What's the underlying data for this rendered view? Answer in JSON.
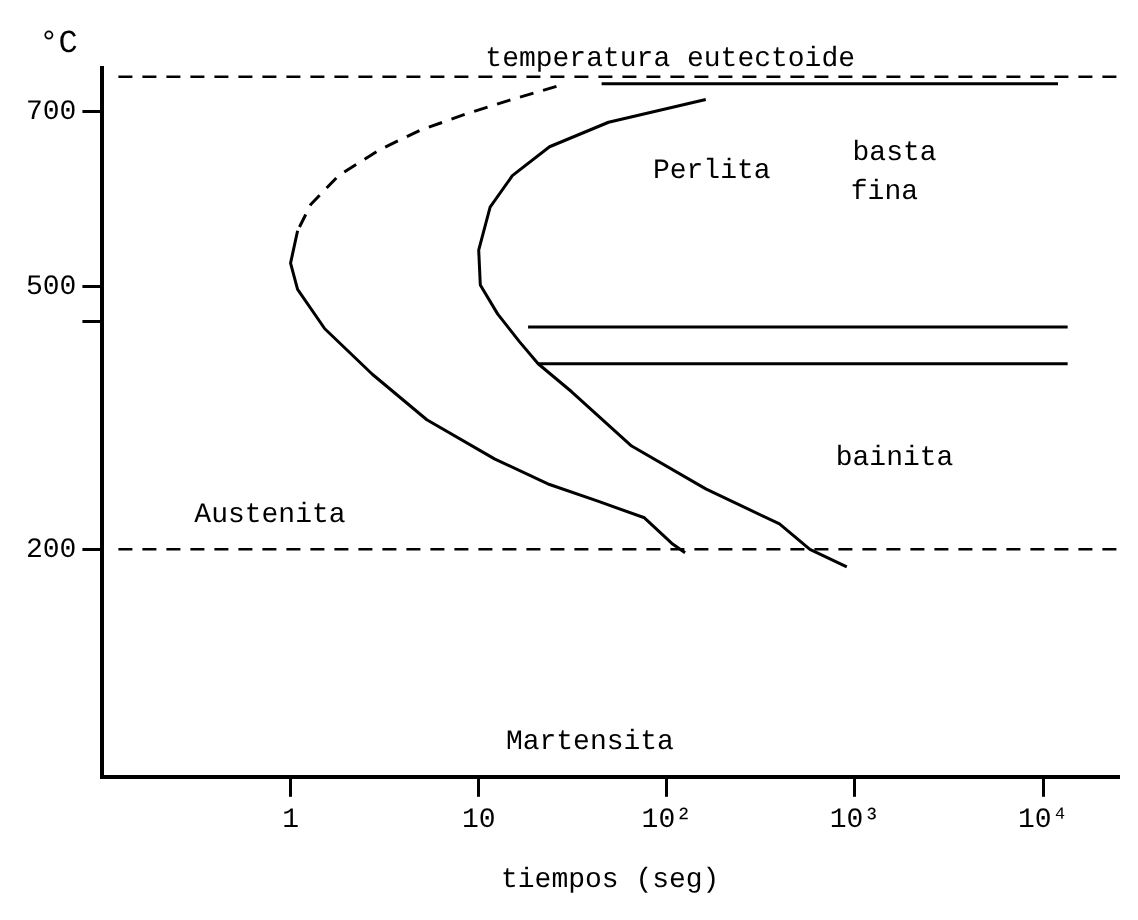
{
  "chart_data": {
    "type": "line",
    "xlabel": "tiempos (seg)",
    "ylabel": "°C",
    "log": "x",
    "grid": false,
    "legend": false,
    "marker": "none",
    "xlim": [
      0.1,
      25000
    ],
    "ylim": [
      -60,
      750
    ],
    "xticks": [
      1,
      10,
      {
        "value": 100,
        "label": "10²"
      },
      {
        "value": 1000,
        "label": "10³"
      },
      {
        "value": 10000,
        "label": "10⁴"
      }
    ],
    "yticks": [
      200,
      {
        "value": 460,
        "label": null
      },
      500,
      700
    ],
    "series": [
      {
        "color": "#000000",
        "line_style": "dashed",
        "x": [
          25.9,
          14.5,
          8.7,
          4.9,
          3.0,
          1.8,
          1.28,
          1.09
        ],
        "values": [
          729,
          713,
          698,
          679,
          657,
          627,
          594,
          564
        ]
      },
      {
        "color": "#000000",
        "line_style": "solid",
        "x": [
          1.09,
          1.0,
          1.09,
          1.52,
          2.72,
          5.3,
          12.2,
          23.8,
          43,
          76,
          106,
          125
        ],
        "values": [
          564,
          527,
          497,
          452,
          400,
          348,
          303,
          274,
          255,
          236,
          207,
          196
        ]
      },
      {
        "color": "#000000",
        "line_style": "solid",
        "x": [
          161,
          49,
          23.8,
          15.1,
          11.5,
          10.0,
          10.2,
          12.6,
          16.5,
          20.7,
          31.2,
          65,
          161,
          397,
          576,
          905
        ],
        "values": [
          714,
          688,
          660,
          627,
          591,
          542,
          502,
          469,
          437,
          412,
          380,
          318,
          269,
          229,
          200,
          180
        ]
      },
      {
        "color": "#000000",
        "line_style": "solid",
        "x": [
          45,
          12000
        ],
        "values": [
          732,
          732
        ]
      },
      {
        "color": "#000000",
        "line_style": "solid",
        "x": [
          18.3,
          13500
        ],
        "values": [
          454,
          454
        ]
      },
      {
        "color": "#000000",
        "line_style": "solid",
        "x": [
          20.7,
          13500
        ],
        "values": [
          412,
          412
        ]
      }
    ],
    "ref_lines": [
      {
        "axis": "y",
        "value": 740,
        "label": "temperatura eutectoide",
        "color": "#000000",
        "line_style": "dashed"
      },
      {
        "axis": "y",
        "value": 200,
        "color": "#000000",
        "line_style": "dashed"
      }
    ],
    "annotations": [
      "Perlita",
      "basta",
      "fina",
      "bainita",
      "Austenita",
      "Martensita"
    ]
  }
}
